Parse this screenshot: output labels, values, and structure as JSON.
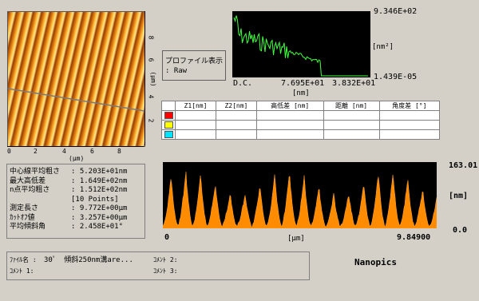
{
  "image_panel": {
    "x_axis_label": "(μm)",
    "y_axis_label": "(μm)",
    "x_ticks": [
      "0",
      "2",
      "4",
      "6",
      "8"
    ],
    "y_ticks": [
      "8",
      "6",
      "4",
      "2"
    ]
  },
  "profile_box": {
    "title": "プロファイル表示",
    "value": ":  Raw"
  },
  "spectrum": {
    "ymax_label": "9.346E+02",
    "ymin_label": "1.439E-05",
    "unit_label": "[nm²]",
    "x_labels": [
      "D.C.",
      "7.695E+01",
      "3.832E+01"
    ],
    "x_unit": "[nm]"
  },
  "region_table": {
    "headers": [
      "",
      "Z1[nm]",
      "Z2[nm]",
      "高低差 [nm]",
      "距離 [nm]",
      "角度差 [°]"
    ],
    "rows": [
      {
        "color": "#ff0000",
        "cells": [
          "",
          "",
          "",
          "",
          ""
        ]
      },
      {
        "color": "#ffff00",
        "cells": [
          "",
          "",
          "",
          "",
          ""
        ]
      },
      {
        "color": "#00e5ff",
        "cells": [
          "",
          "",
          "",
          "",
          ""
        ]
      }
    ]
  },
  "stats": {
    "rows": [
      {
        "label": "中心線平均粗さ",
        "value": ": 5.203E+01nm"
      },
      {
        "label": "最大高低差",
        "value": ": 1.649E+02nm"
      },
      {
        "label": "n点平均粗さ",
        "value": ": 1.512E+02nm"
      },
      {
        "label": "",
        "value": "  [10 Points]"
      },
      {
        "label": "測定長さ",
        "value": ": 9.772E+00μm"
      },
      {
        "label": "ｶｯﾄｵﾌ値",
        "value": ": 3.257E+00μm"
      },
      {
        "label": "平均傾斜角",
        "value": ": 2.458E+01°"
      }
    ]
  },
  "height_profile": {
    "top_value": "163.01",
    "bottom_value": "0.0",
    "unit": "[nm]",
    "x_start": "0",
    "x_end": "9.84900",
    "x_unit": "[μm]"
  },
  "footer": {
    "file_label": "ﾌｧｲﾙ名 :",
    "file_value": "30゜ 傾斜250nm溝are...",
    "comment1_label": "ｺﾒﾝﾄ 1:",
    "comment1_value": "",
    "comment2_label": "ｺﾒﾝﾄ 2:",
    "comment3_label": "ｺﾒﾝﾄ 3:",
    "brand": "Nanopics"
  },
  "colors": {
    "profile_fill": "#ff8c00",
    "spectrum_line": "#40ff40",
    "plot_bg": "#000000"
  }
}
